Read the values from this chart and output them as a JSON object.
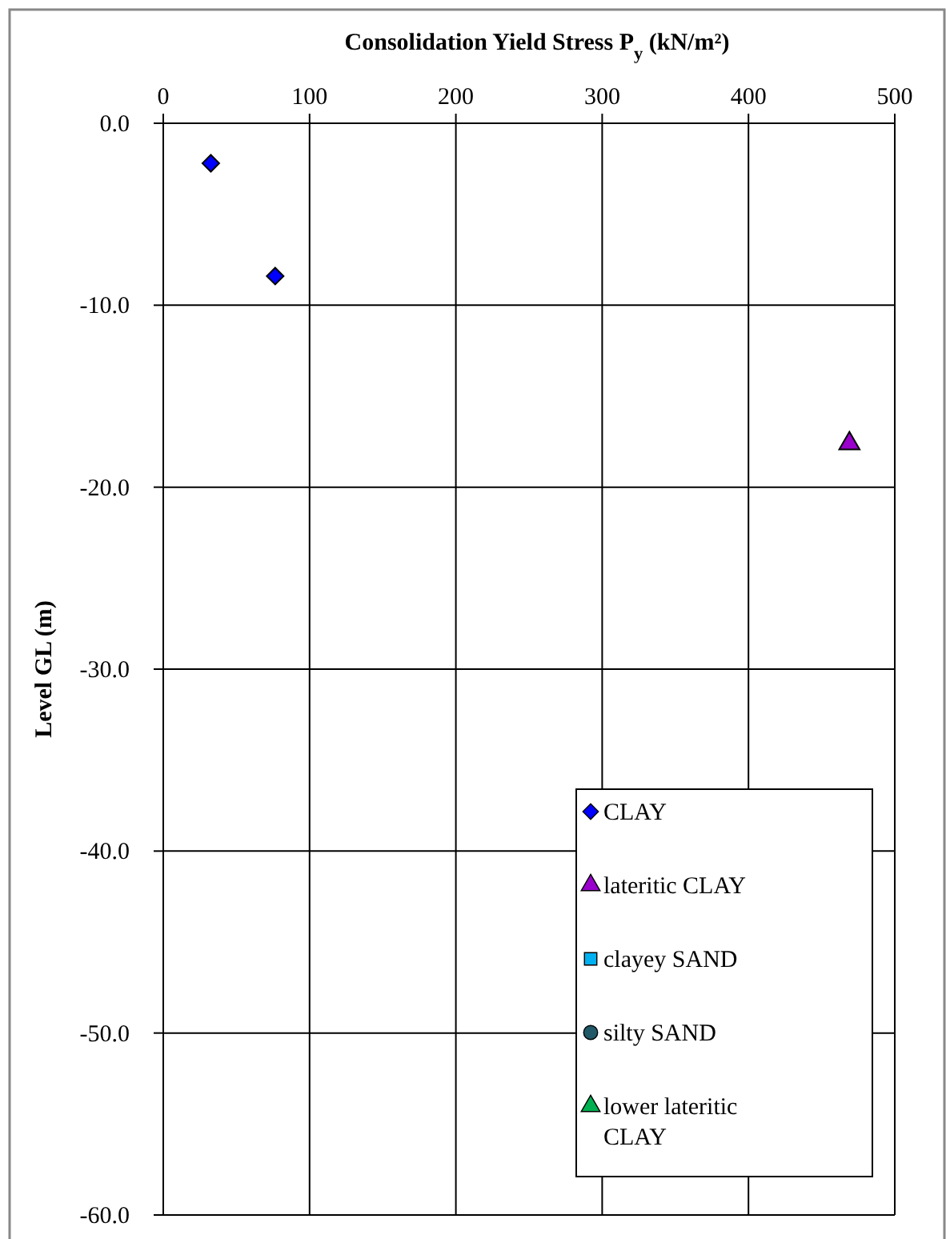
{
  "chart_data": {
    "type": "scatter",
    "xlabel": "Consolidation Yield Stress  P$_{y}$ (kN/m²)",
    "ylabel": "Level GL (m)",
    "xlim": [
      0,
      500
    ],
    "xticks": [
      0,
      100,
      200,
      300,
      400,
      500
    ],
    "ylim": [
      -60,
      0
    ],
    "yticks": [
      {
        "value": -60,
        "label": "-60.0"
      },
      {
        "value": -50,
        "label": "-50.0"
      },
      {
        "value": -40,
        "label": "-40.0"
      },
      {
        "value": -30,
        "label": "-30.0"
      },
      {
        "value": -20,
        "label": "-20.0"
      },
      {
        "value": -10,
        "label": "-10.0"
      },
      {
        "value": 0,
        "label": "0.0"
      }
    ],
    "grid": true,
    "legend": "bottom right",
    "series": [
      {
        "name": "CLAY",
        "color": "#0000ff",
        "marker": "diamond",
        "x": [
          32.5,
          76.5
        ],
        "values": [
          -2.2,
          -8.4
        ]
      },
      {
        "name": "lateritic CLAY",
        "color": "#9900cc",
        "marker": "triangle",
        "x": [
          469
        ],
        "values": [
          -17.6
        ]
      },
      {
        "name": "clayey SAND",
        "color": "#00b0f0",
        "marker": "square"
      },
      {
        "name": "silty SAND",
        "color": "#215968",
        "marker": "circle"
      },
      {
        "name": "lower lateritic CLAY",
        "color": "#00b050",
        "marker": "triangle"
      }
    ]
  }
}
